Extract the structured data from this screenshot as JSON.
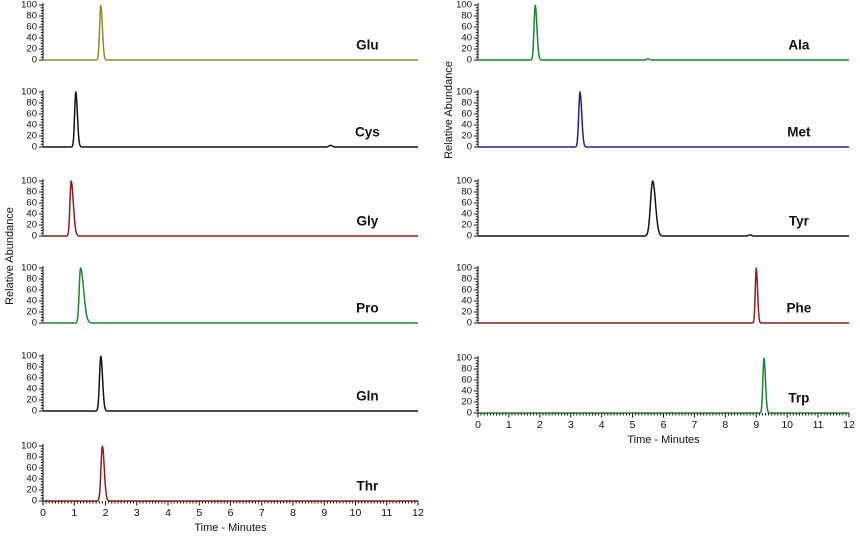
{
  "figure": {
    "xlabel": "Time - Minutes",
    "ylabel": "Relative Abundance",
    "x_ticks": [
      0,
      1,
      2,
      3,
      4,
      5,
      6,
      7,
      8,
      9,
      10,
      11,
      12
    ],
    "y_ticks": [
      100,
      80,
      60,
      40,
      20,
      0
    ],
    "xlim": [
      0,
      12
    ],
    "ylim": [
      0,
      100
    ],
    "grid": false,
    "columns": [
      "left",
      "right"
    ]
  },
  "chart_data": [
    {
      "type": "line",
      "title": "Glu",
      "column": "left",
      "row": 0,
      "color": "#8f8f2a",
      "retention_time_min": 1.85,
      "peak_height": 100,
      "sigma_left": 0.038,
      "sigma_right": 0.05,
      "blips": []
    },
    {
      "type": "line",
      "title": "Cys",
      "column": "left",
      "row": 1,
      "color": "#141414",
      "retention_time_min": 1.05,
      "peak_height": 100,
      "sigma_left": 0.038,
      "sigma_right": 0.05,
      "blips": [
        {
          "t": 9.2,
          "h": 3
        }
      ]
    },
    {
      "type": "line",
      "title": "Gly",
      "column": "left",
      "row": 2,
      "color": "#8c1f1c",
      "retention_time_min": 0.9,
      "peak_height": 100,
      "sigma_left": 0.038,
      "sigma_right": 0.07,
      "blips": []
    },
    {
      "type": "line",
      "title": "Pro",
      "column": "left",
      "row": 3,
      "color": "#1e8432",
      "retention_time_min": 1.2,
      "peak_height": 100,
      "sigma_left": 0.042,
      "sigma_right": 0.1,
      "blips": []
    },
    {
      "type": "line",
      "title": "Gln",
      "column": "left",
      "row": 4,
      "color": "#141414",
      "retention_time_min": 1.85,
      "peak_height": 100,
      "sigma_left": 0.042,
      "sigma_right": 0.055,
      "blips": []
    },
    {
      "type": "line",
      "title": "Thr",
      "column": "left",
      "row": 5,
      "color": "#8c1f1c",
      "retention_time_min": 1.9,
      "peak_height": 100,
      "sigma_left": 0.045,
      "sigma_right": 0.06,
      "blips": []
    },
    {
      "type": "line",
      "title": "Ala",
      "column": "right",
      "row": 0,
      "color": "#1e8432",
      "retention_time_min": 1.85,
      "peak_height": 100,
      "sigma_left": 0.038,
      "sigma_right": 0.055,
      "blips": [
        {
          "t": 5.5,
          "h": 2
        }
      ]
    },
    {
      "type": "line",
      "title": "Met",
      "column": "right",
      "row": 1,
      "color": "#22228a",
      "retention_time_min": 3.3,
      "peak_height": 100,
      "sigma_left": 0.042,
      "sigma_right": 0.055,
      "blips": []
    },
    {
      "type": "line",
      "title": "Tyr",
      "column": "right",
      "row": 2,
      "color": "#141414",
      "retention_time_min": 5.65,
      "peak_height": 100,
      "sigma_left": 0.07,
      "sigma_right": 0.09,
      "blips": [
        {
          "t": 8.8,
          "h": 2
        }
      ]
    },
    {
      "type": "line",
      "title": "Phe",
      "column": "right",
      "row": 3,
      "color": "#8c1f1c",
      "retention_time_min": 9.0,
      "peak_height": 100,
      "sigma_left": 0.032,
      "sigma_right": 0.042,
      "blips": []
    },
    {
      "type": "line",
      "title": "Trp",
      "column": "right",
      "row": 4,
      "color": "#1e8432",
      "retention_time_min": 9.25,
      "peak_height": 100,
      "sigma_left": 0.036,
      "sigma_right": 0.048,
      "blips": []
    }
  ]
}
